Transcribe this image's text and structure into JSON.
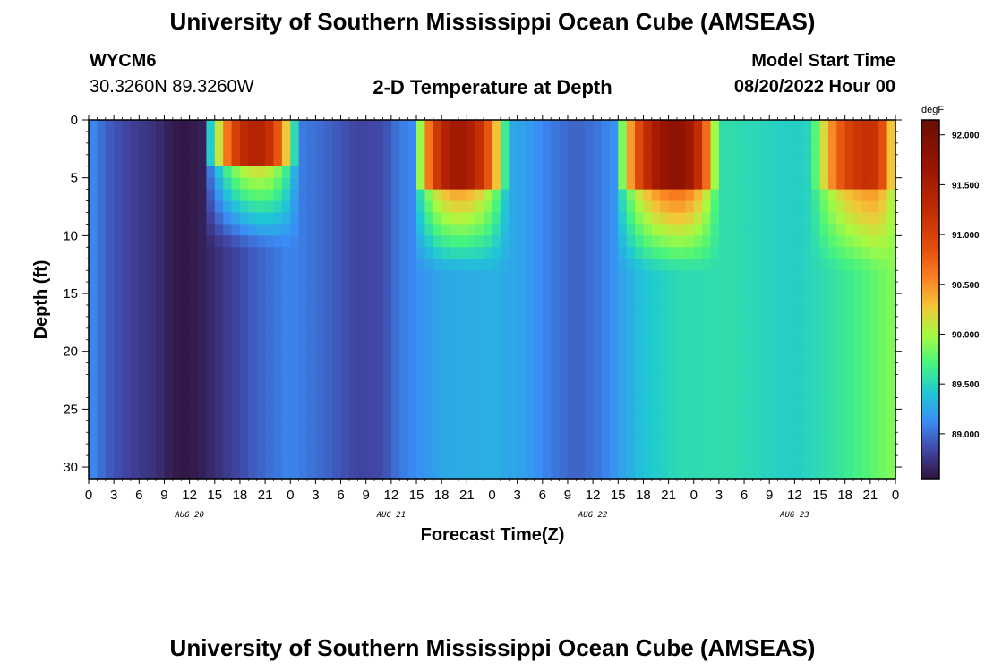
{
  "header": {
    "title": "University of Southern Mississippi Ocean Cube (AMSEAS)",
    "station_id": "WYCM6",
    "coordinates": "30.3260N  89.3260W",
    "plot_title": "2-D Temperature at Depth",
    "model_start_label": "Model Start Time",
    "model_start_value": "08/20/2022 Hour 00"
  },
  "footer": {
    "title": "University of Southern Mississippi Ocean Cube (AMSEAS)"
  },
  "chart_data": {
    "type": "heatmap",
    "title": "2-D Temperature at Depth",
    "xlabel": "Forecast Time(Z)",
    "ylabel": "Depth (ft)",
    "x_tick_labels": [
      "0",
      "3",
      "6",
      "9",
      "12",
      "15",
      "18",
      "21",
      "0",
      "3",
      "6",
      "9",
      "12",
      "15",
      "18",
      "21",
      "0",
      "3",
      "6",
      "9",
      "12",
      "15",
      "18",
      "21",
      "0",
      "3",
      "6",
      "9",
      "12",
      "15",
      "18",
      "21",
      "0"
    ],
    "x_hours_range": [
      0,
      96
    ],
    "date_labels": [
      {
        "label": "AUG 20",
        "hour": 12
      },
      {
        "label": "AUG 21",
        "hour": 36
      },
      {
        "label": "AUG 22",
        "hour": 60
      },
      {
        "label": "AUG 23",
        "hour": 84
      }
    ],
    "y_ticks": [
      0,
      5,
      10,
      15,
      20,
      25,
      30
    ],
    "y_tick_labels": [
      "0",
      "5",
      "10",
      "15",
      "20",
      "25",
      "30"
    ],
    "ylim": [
      0,
      31
    ],
    "colorbar": {
      "units": "degF",
      "min": 88.55,
      "max": 92.15,
      "tick_values": [
        89.0,
        89.5,
        90.0,
        90.5,
        91.0,
        91.5,
        92.0
      ],
      "tick_labels": [
        "89.000",
        "89.500",
        "90.000",
        "90.500",
        "91.000",
        "91.500",
        "92.000"
      ]
    },
    "temperature_profile_deep_degF": [
      {
        "hour": 0,
        "value": 89.15
      },
      {
        "hour": 2,
        "value": 88.95
      },
      {
        "hour": 5,
        "value": 88.8
      },
      {
        "hour": 8,
        "value": 88.72
      },
      {
        "hour": 10,
        "value": 88.6
      },
      {
        "hour": 12,
        "value": 88.58
      },
      {
        "hour": 14,
        "value": 88.65
      },
      {
        "hour": 17,
        "value": 88.8
      },
      {
        "hour": 20,
        "value": 88.95
      },
      {
        "hour": 24,
        "value": 89.1
      },
      {
        "hour": 28,
        "value": 88.98
      },
      {
        "hour": 32,
        "value": 88.82
      },
      {
        "hour": 35,
        "value": 88.85
      },
      {
        "hour": 37,
        "value": 89.05
      },
      {
        "hour": 42,
        "value": 89.25
      },
      {
        "hour": 48,
        "value": 89.3
      },
      {
        "hour": 52,
        "value": 89.22
      },
      {
        "hour": 55,
        "value": 89.05
      },
      {
        "hour": 58,
        "value": 88.95
      },
      {
        "hour": 61,
        "value": 89.05
      },
      {
        "hour": 63,
        "value": 89.2
      },
      {
        "hour": 66,
        "value": 89.4
      },
      {
        "hour": 70,
        "value": 89.52
      },
      {
        "hour": 76,
        "value": 89.55
      },
      {
        "hour": 80,
        "value": 89.5
      },
      {
        "hour": 84,
        "value": 89.45
      },
      {
        "hour": 88,
        "value": 89.55
      },
      {
        "hour": 92,
        "value": 89.7
      },
      {
        "hour": 96,
        "value": 89.9
      }
    ],
    "surface_warm_peaks": [
      {
        "start_hour": 13.5,
        "peak_hour": 20,
        "end_hour": 25,
        "peak_value": 91.4,
        "depth_ft": 3.5
      },
      {
        "start_hour": 38.5,
        "peak_hour": 44,
        "end_hour": 50,
        "peak_value": 91.6,
        "depth_ft": 5.5
      },
      {
        "start_hour": 62.5,
        "peak_hour": 70,
        "end_hour": 75,
        "peak_value": 91.8,
        "depth_ft": 5.5
      },
      {
        "start_hour": 86,
        "peak_hour": 93,
        "end_hour": 96,
        "peak_value": 91.2,
        "depth_ft": 5.5
      }
    ]
  }
}
